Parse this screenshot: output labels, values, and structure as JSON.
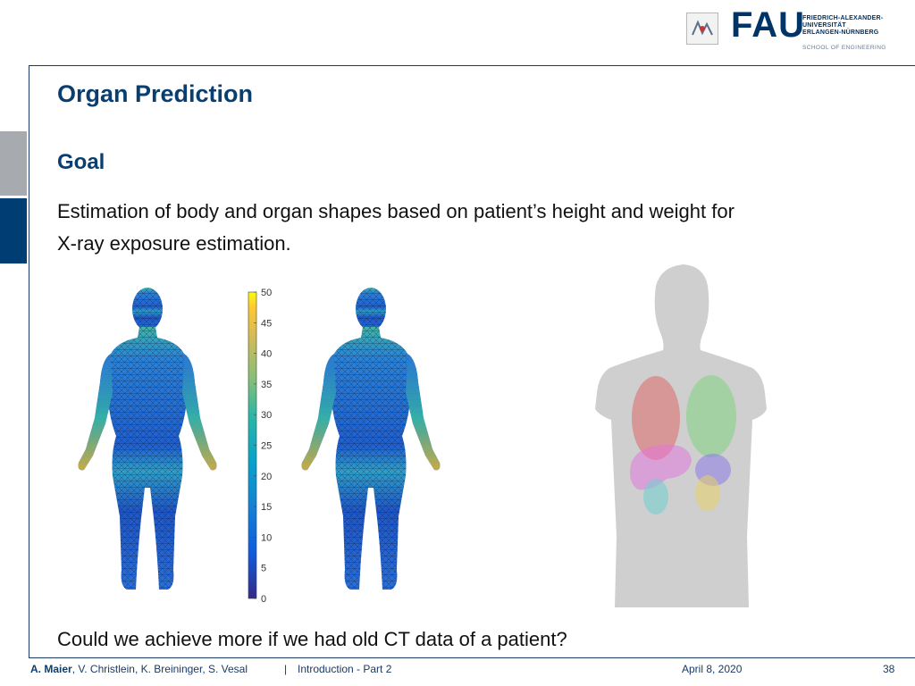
{
  "header": {
    "logo_text": "FAU",
    "university_lines": [
      "FRIEDRICH-ALEXANDER-",
      "UNIVERSITÄT",
      "ERLANGEN-NÜRNBERG"
    ],
    "school": "SCHOOL OF ENGINEERING"
  },
  "slide": {
    "title": "Organ Prediction",
    "subtitle": "Goal",
    "body_line1": "Estimation of body and organ shapes based on patient’s height and weight for",
    "body_line2": "X-ray exposure estimation.",
    "question": "Could we achieve more if we had old CT data of a patient?"
  },
  "colorbar": {
    "ticks": [
      "50",
      "45",
      "40",
      "35",
      "30",
      "25",
      "20",
      "15",
      "10",
      "5",
      "0"
    ],
    "range": [
      0,
      50
    ],
    "colormap": "parula"
  },
  "figure": {
    "organs": [
      {
        "name": "right-lung",
        "color": "#e06a6a"
      },
      {
        "name": "left-lung",
        "color": "#7fd37f"
      },
      {
        "name": "liver",
        "color": "#e36fe0"
      },
      {
        "name": "stomach",
        "color": "#8a7ae8"
      },
      {
        "name": "right-kidney",
        "color": "#6fd0d0"
      },
      {
        "name": "left-kidney",
        "color": "#e8d26a"
      }
    ]
  },
  "footer": {
    "lead_author": "A. Maier",
    "other_authors": ", V. Christlein, K. Breininger, S. Vesal",
    "separator": "|",
    "course": "Introduction - Part 2",
    "date": "April 8, 2020",
    "page": "38"
  }
}
